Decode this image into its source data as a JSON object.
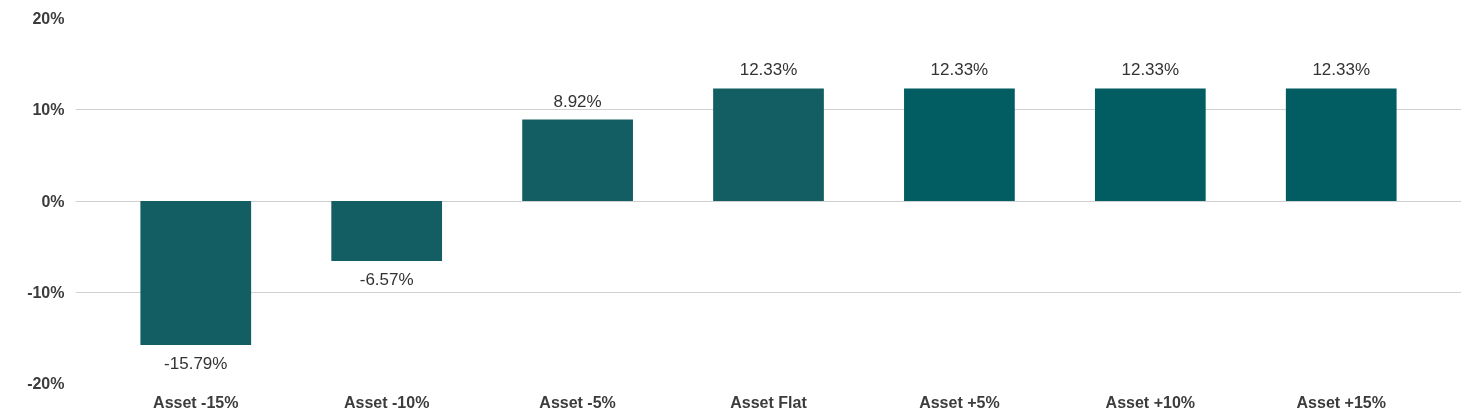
{
  "chart_data": {
    "type": "bar",
    "categories": [
      "Asset -15%",
      "Asset -10%",
      "Asset -5%",
      "Asset Flat",
      "Asset +5%",
      "Asset +10%",
      "Asset +15%"
    ],
    "values": [
      -15.79,
      -6.57,
      8.92,
      12.33,
      12.33,
      12.33,
      12.33
    ],
    "colors": [
      "#135e63",
      "#135e63",
      "#135e63",
      "#135e63",
      "#025d63",
      "#025d63",
      "#025d63"
    ],
    "value_labels": [
      "-15.79%",
      "-6.57%",
      "8.92%",
      "12.33%",
      "12.33%",
      "12.33%",
      "12.33%"
    ],
    "ylim": [
      -20,
      20
    ],
    "yticks": [
      {
        "value": -20,
        "label": "-20%"
      },
      {
        "value": -10,
        "label": "-10%"
      },
      {
        "value": 0,
        "label": "0%"
      },
      {
        "value": 10,
        "label": "10%"
      },
      {
        "value": 20,
        "label": "20%"
      }
    ],
    "grid": "y"
  }
}
